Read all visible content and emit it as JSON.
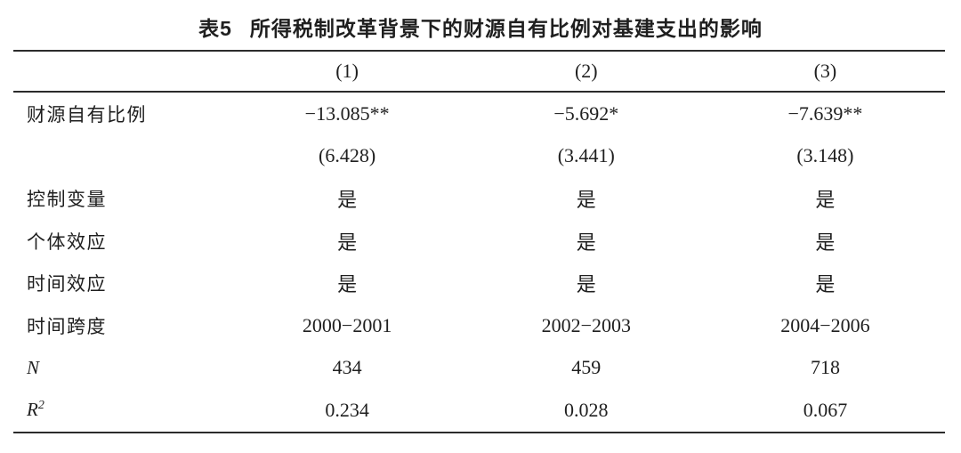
{
  "table": {
    "label": "表5",
    "title": "所得税制改革背景下的财源自有比例对基建支出的影响",
    "columns": [
      "(1)",
      "(2)",
      "(3)"
    ],
    "rows": [
      {
        "label": "财源自有比例",
        "values": [
          "−13.085**",
          "−5.692*",
          "−7.639**"
        ]
      },
      {
        "label": "",
        "values": [
          "(6.428)",
          "(3.441)",
          "(3.148)"
        ]
      },
      {
        "label": "控制变量",
        "values": [
          "是",
          "是",
          "是"
        ]
      },
      {
        "label": "个体效应",
        "values": [
          "是",
          "是",
          "是"
        ]
      },
      {
        "label": "时间效应",
        "values": [
          "是",
          "是",
          "是"
        ]
      },
      {
        "label": "时间跨度",
        "values": [
          "2000−2001",
          "2002−2003",
          "2004−2006"
        ]
      },
      {
        "label": "N",
        "values": [
          "434",
          "459",
          "718"
        ]
      },
      {
        "label_base": "R",
        "label_sup": "2",
        "values": [
          "0.234",
          "0.028",
          "0.067"
        ]
      }
    ],
    "colors": {
      "text": "#1f1f1f",
      "rule": "#2b2b2b",
      "background": "#ffffff"
    }
  }
}
